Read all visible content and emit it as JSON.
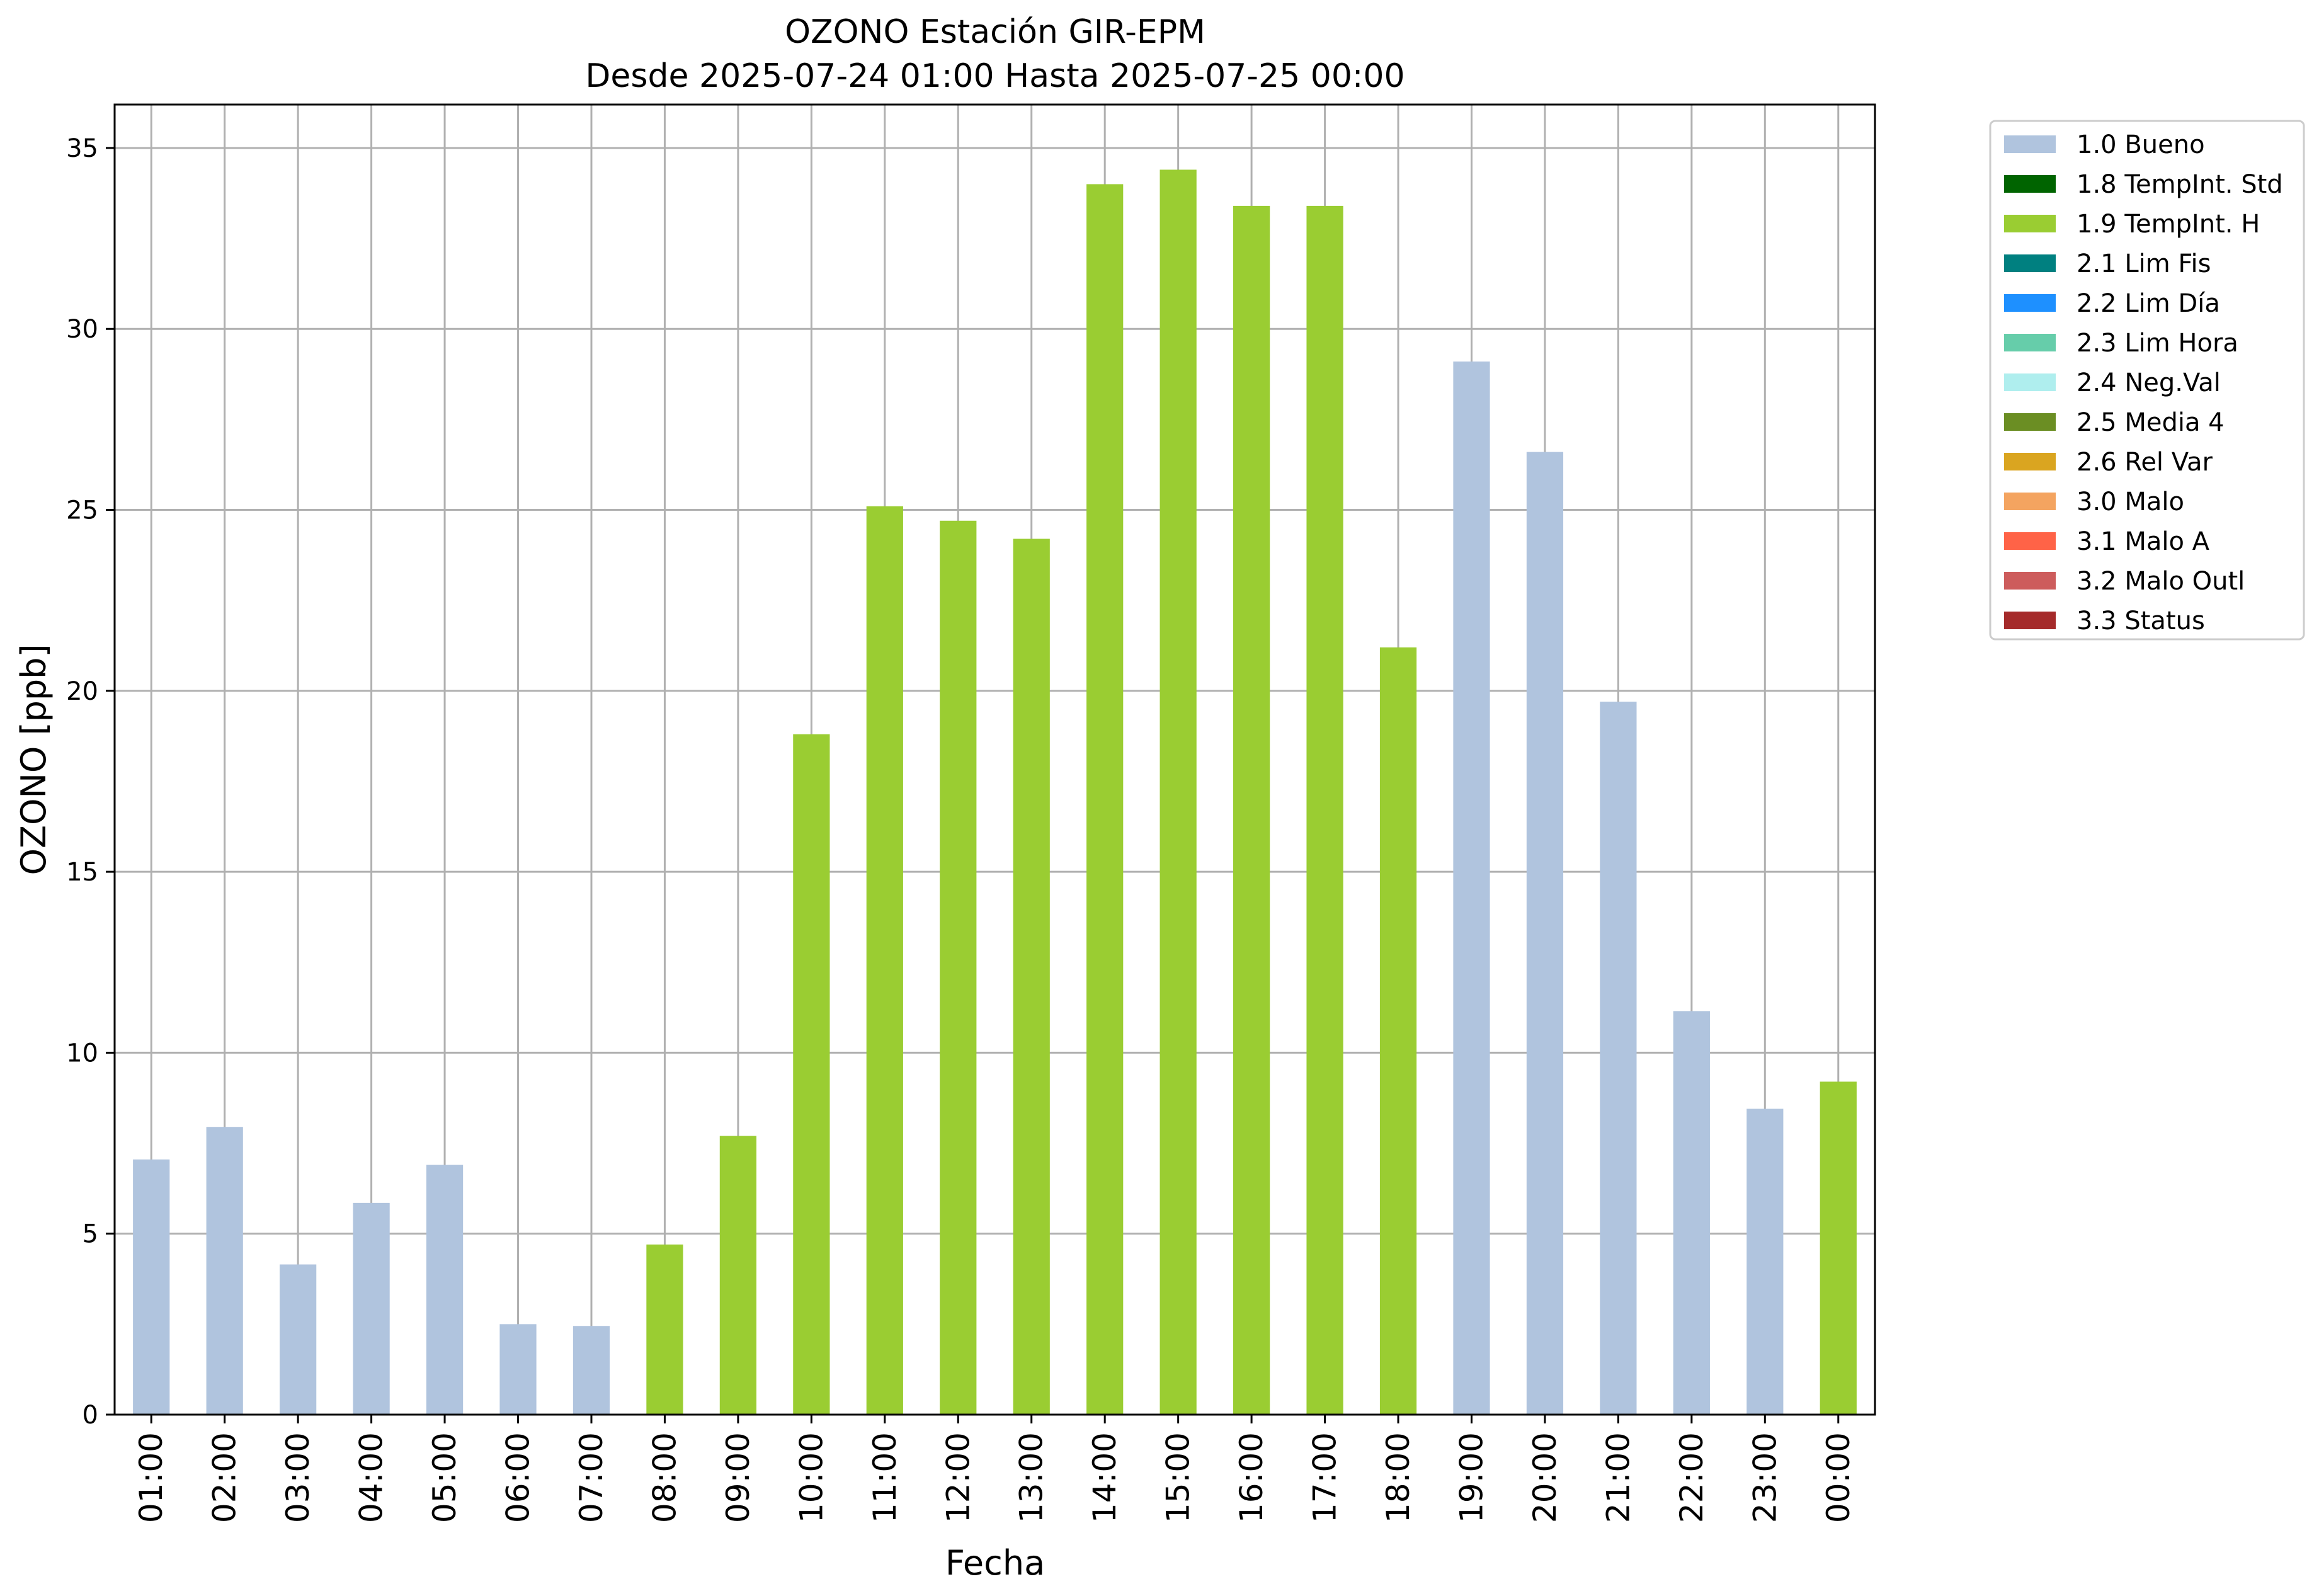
{
  "chart_data": {
    "type": "bar",
    "title": "OZONO Estación GIR-EPM",
    "subtitle": "Desde 2025-07-24 01:00 Hasta 2025-07-25 00:00",
    "xlabel": "Fecha",
    "ylabel": "OZONO [ppb]",
    "ylim": [
      0,
      36.2
    ],
    "yticks": [
      0,
      5,
      10,
      15,
      20,
      25,
      30,
      35
    ],
    "grid": true,
    "legend_position": "outside-top-right",
    "categories": [
      "01:00",
      "02:00",
      "03:00",
      "04:00",
      "05:00",
      "06:00",
      "07:00",
      "08:00",
      "09:00",
      "10:00",
      "11:00",
      "12:00",
      "13:00",
      "14:00",
      "15:00",
      "16:00",
      "17:00",
      "18:00",
      "19:00",
      "20:00",
      "21:00",
      "22:00",
      "23:00",
      "00:00"
    ],
    "values": [
      7.05,
      7.95,
      4.15,
      5.85,
      6.9,
      2.5,
      2.45,
      4.7,
      7.7,
      18.8,
      25.1,
      24.7,
      24.2,
      34.0,
      34.4,
      33.4,
      33.4,
      21.2,
      29.1,
      26.6,
      19.7,
      11.15,
      8.45,
      9.2
    ],
    "flags": [
      "1.0 Bueno",
      "1.0 Bueno",
      "1.0 Bueno",
      "1.0 Bueno",
      "1.0 Bueno",
      "1.0 Bueno",
      "1.0 Bueno",
      "1.9 TempInt. H",
      "1.9 TempInt. H",
      "1.9 TempInt. H",
      "1.9 TempInt. H",
      "1.9 TempInt. H",
      "1.9 TempInt. H",
      "1.9 TempInt. H",
      "1.9 TempInt. H",
      "1.9 TempInt. H",
      "1.9 TempInt. H",
      "1.9 TempInt. H",
      "1.0 Bueno",
      "1.0 Bueno",
      "1.0 Bueno",
      "1.0 Bueno",
      "1.0 Bueno",
      "1.9 TempInt. H"
    ],
    "legend": [
      {
        "label": "1.0 Bueno",
        "color": "#b0c4de"
      },
      {
        "label": "1.8 TempInt. Std",
        "color": "#006400"
      },
      {
        "label": "1.9 TempInt. H",
        "color": "#9acd32"
      },
      {
        "label": "2.1 Lim Fis",
        "color": "#008080"
      },
      {
        "label": "2.2 Lim Día",
        "color": "#1e90ff"
      },
      {
        "label": "2.3 Lim Hora",
        "color": "#66cdaa"
      },
      {
        "label": "2.4 Neg.Val",
        "color": "#afeeee"
      },
      {
        "label": "2.5 Media 4",
        "color": "#6b8e23"
      },
      {
        "label": "2.6 Rel Var",
        "color": "#daa520"
      },
      {
        "label": "3.0 Malo",
        "color": "#f4a460"
      },
      {
        "label": "3.1 Malo A",
        "color": "#ff6347"
      },
      {
        "label": "3.2 Malo Outl",
        "color": "#cd5c5c"
      },
      {
        "label": "3.3 Status",
        "color": "#a52a2a"
      }
    ]
  }
}
